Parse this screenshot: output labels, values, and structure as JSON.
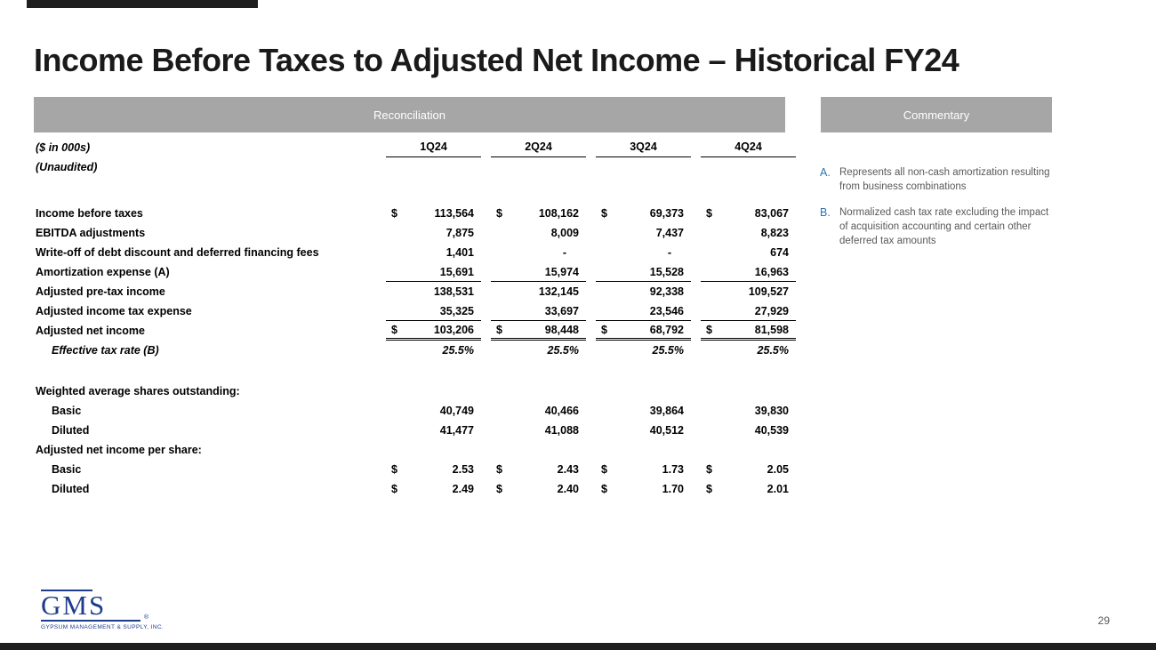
{
  "slide": {
    "title": "Income Before Taxes to Adjusted Net Income – Historical FY24"
  },
  "section_headers": {
    "reconciliation": "Reconciliation",
    "commentary": "Commentary"
  },
  "table": {
    "units_note": "($ in 000s)",
    "audit_note": "(Unaudited)",
    "columns": [
      "1Q24",
      "2Q24",
      "3Q24",
      "4Q24"
    ],
    "rows": [
      {
        "label": "Income before taxes",
        "indent": 0,
        "dollar": true,
        "values": [
          "113,564",
          "108,162",
          "69,373",
          "83,067"
        ]
      },
      {
        "label": "EBITDA adjustments",
        "indent": 0,
        "dollar": false,
        "values": [
          "7,875",
          "8,009",
          "7,437",
          "8,823"
        ]
      },
      {
        "label": "Write-off of debt discount and deferred financing fees",
        "indent": 0,
        "dollar": false,
        "values": [
          "1,401",
          "-",
          "-",
          "674"
        ]
      },
      {
        "label": "Amortization expense (A)",
        "indent": 0,
        "dollar": false,
        "values": [
          "15,691",
          "15,974",
          "15,528",
          "16,963"
        ],
        "underline": "single"
      },
      {
        "label": "Adjusted pre-tax income",
        "indent": 0,
        "dollar": false,
        "values": [
          "138,531",
          "132,145",
          "92,338",
          "109,527"
        ]
      },
      {
        "label": "Adjusted income tax expense",
        "indent": 0,
        "dollar": false,
        "values": [
          "35,325",
          "33,697",
          "23,546",
          "27,929"
        ],
        "underline": "single"
      },
      {
        "label": "Adjusted net income",
        "indent": 0,
        "dollar": true,
        "values": [
          "103,206",
          "98,448",
          "68,792",
          "81,598"
        ],
        "underline": "double"
      },
      {
        "label": "Effective tax rate (B)",
        "indent": 1,
        "dollar": false,
        "values": [
          "25.5%",
          "25.5%",
          "25.5%",
          "25.5%"
        ],
        "italic": true
      },
      {
        "label": "",
        "spacer": true,
        "values": []
      },
      {
        "label": "Weighted average shares outstanding:",
        "indent": 0,
        "dollar": false,
        "values": [
          "",
          "",
          "",
          ""
        ]
      },
      {
        "label": "Basic",
        "indent": 1,
        "dollar": false,
        "values": [
          "40,749",
          "40,466",
          "39,864",
          "39,830"
        ]
      },
      {
        "label": "Diluted",
        "indent": 1,
        "dollar": false,
        "values": [
          "41,477",
          "41,088",
          "40,512",
          "40,539"
        ]
      },
      {
        "label": "Adjusted net income per share:",
        "indent": 0,
        "dollar": false,
        "values": [
          "",
          "",
          "",
          ""
        ]
      },
      {
        "label": "Basic",
        "indent": 1,
        "dollar": true,
        "values": [
          "2.53",
          "2.43",
          "1.73",
          "2.05"
        ]
      },
      {
        "label": "Diluted",
        "indent": 1,
        "dollar": true,
        "values": [
          "2.49",
          "2.40",
          "1.70",
          "2.01"
        ]
      }
    ]
  },
  "commentary": {
    "notes": [
      {
        "letter": "A.",
        "text": "Represents all non-cash amortization resulting from business combinations"
      },
      {
        "letter": "B.",
        "text": "Normalized cash tax rate excluding the impact of acquisition accounting and certain other deferred tax amounts"
      }
    ]
  },
  "footer": {
    "logo_name": "GMS",
    "logo_registered": "®",
    "logo_tagline": "GYPSUM MANAGEMENT & SUPPLY, INC.",
    "page_number": "29"
  },
  "colors": {
    "section_bar_gray": "#a6a6a6",
    "note_letter_blue": "#2e74b5",
    "note_text_gray": "#595959",
    "logo_blue": "#1e3c8c",
    "accent_bar_dark": "#1f1f1f"
  }
}
